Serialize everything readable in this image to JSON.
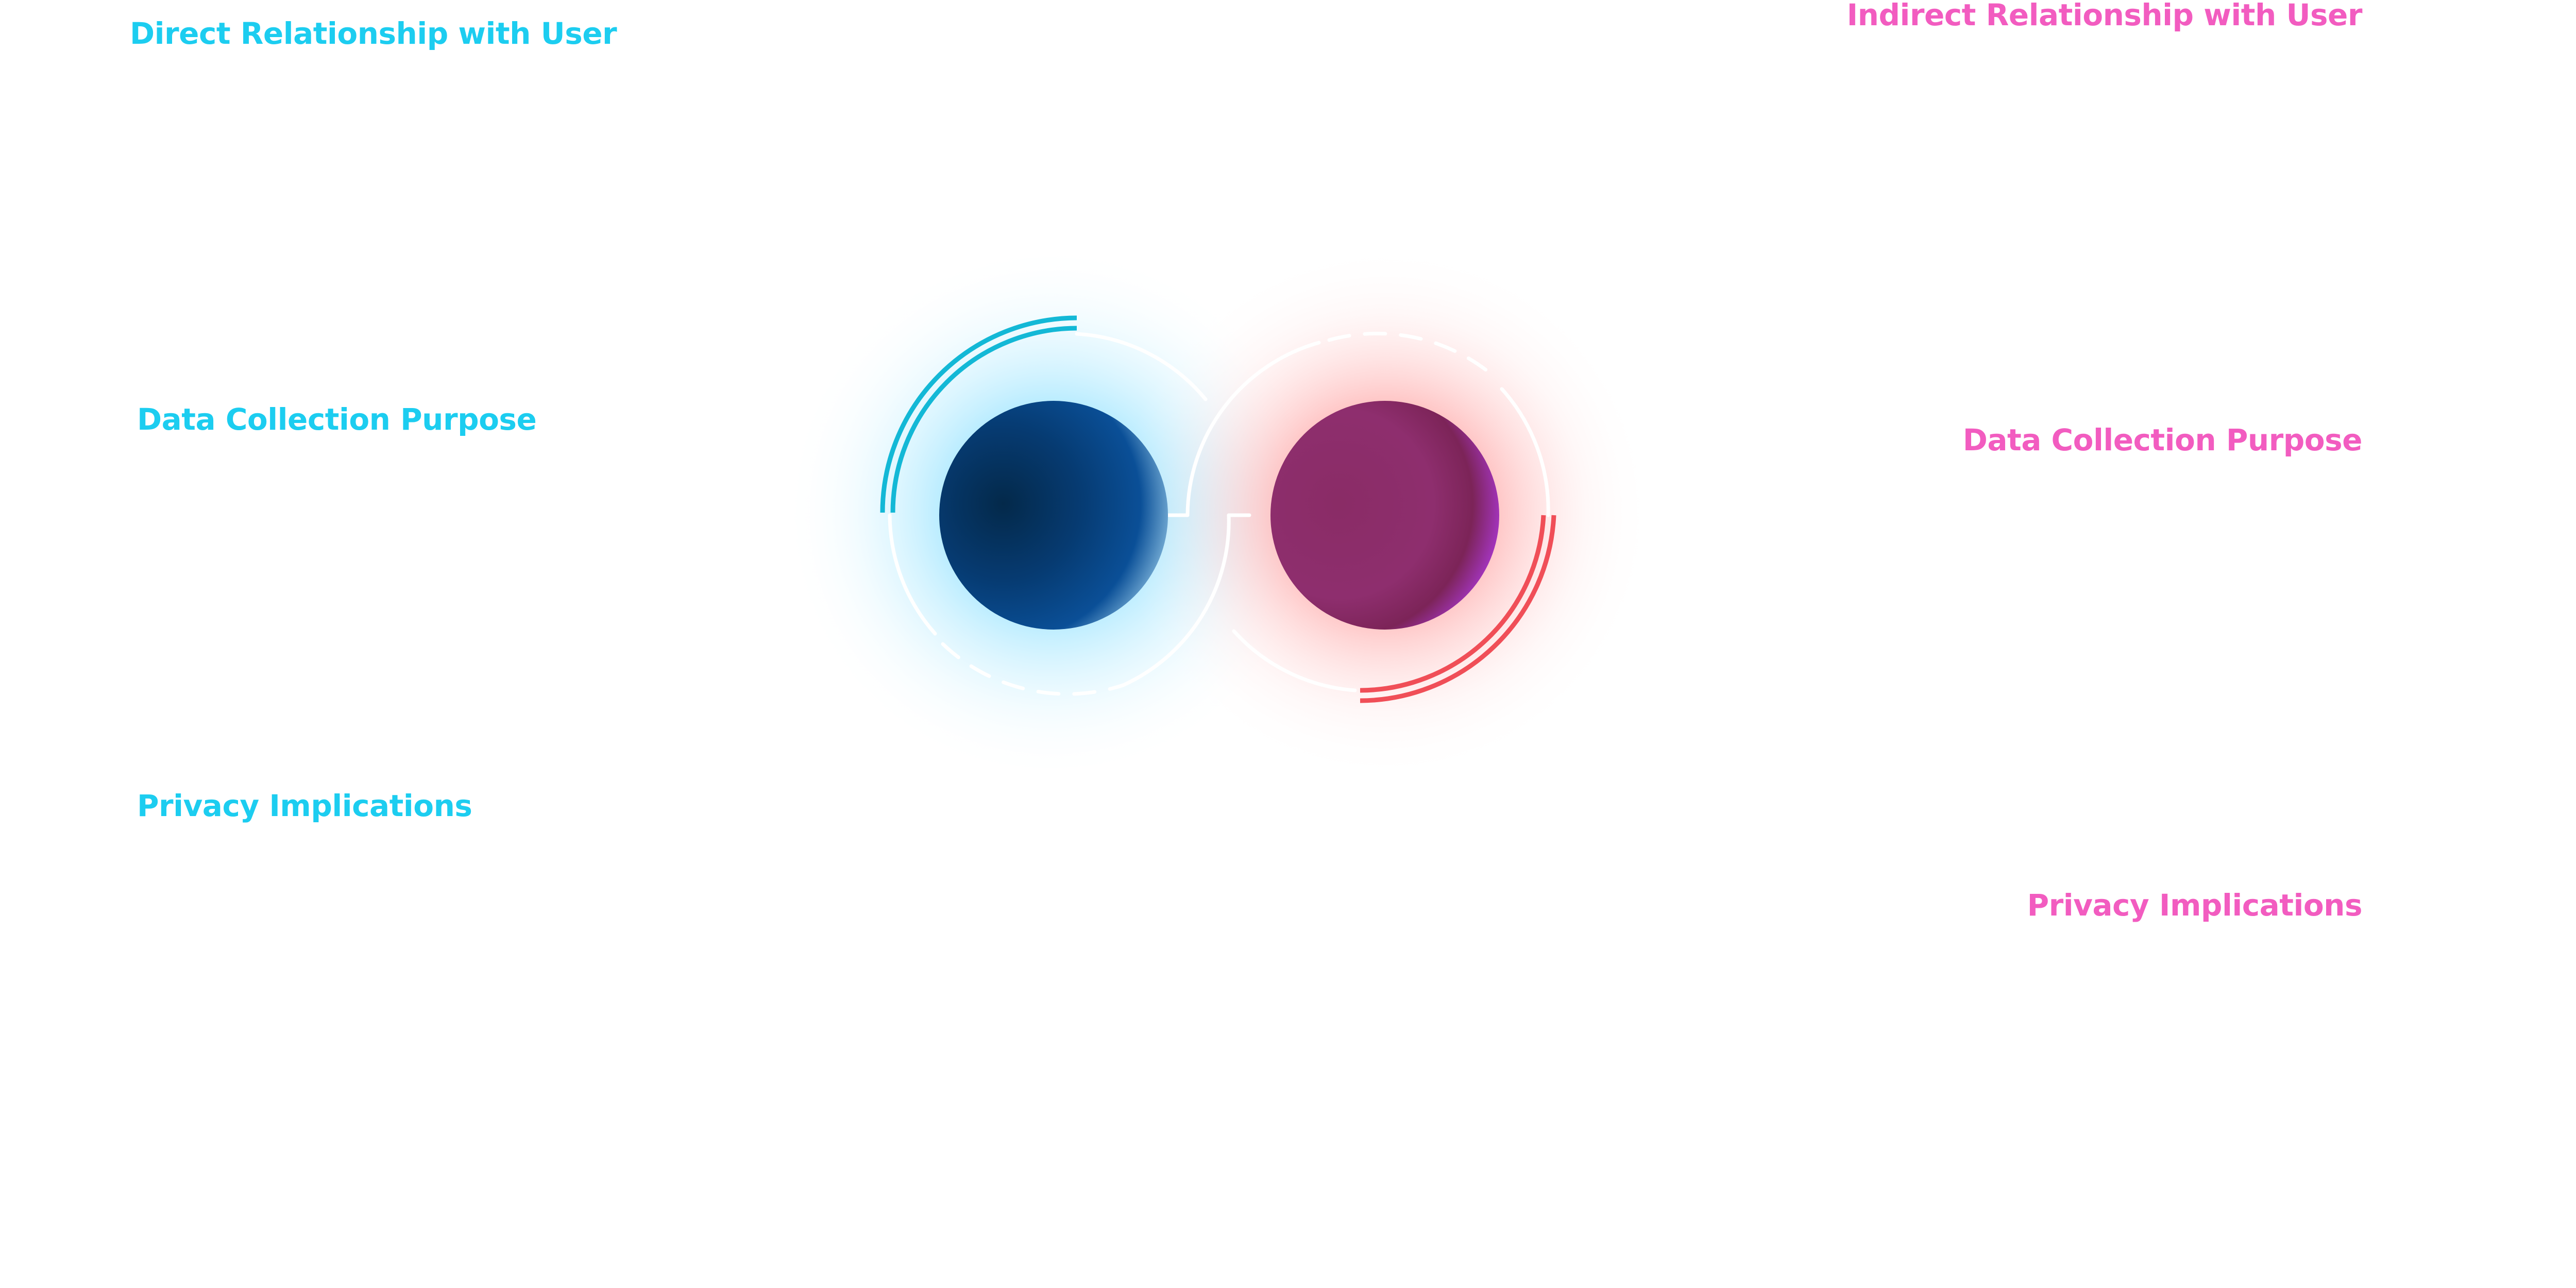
{
  "left_panel": {
    "heading": "Direct Relationship with User",
    "item_1": "Data Collection Purpose",
    "item_2": "Privacy Implications"
  },
  "right_panel": {
    "heading": "Indirect Relationship with User",
    "item_1": "Data Collection Purpose",
    "item_2": "Privacy Implications"
  },
  "colors": {
    "left_accent": "#1ccdf0",
    "right_accent": "#f25cc0",
    "left_arc": "#13b8d6",
    "right_arc": "#f04e57",
    "left_node": "#07448a",
    "right_node": "#8c2d6c"
  }
}
